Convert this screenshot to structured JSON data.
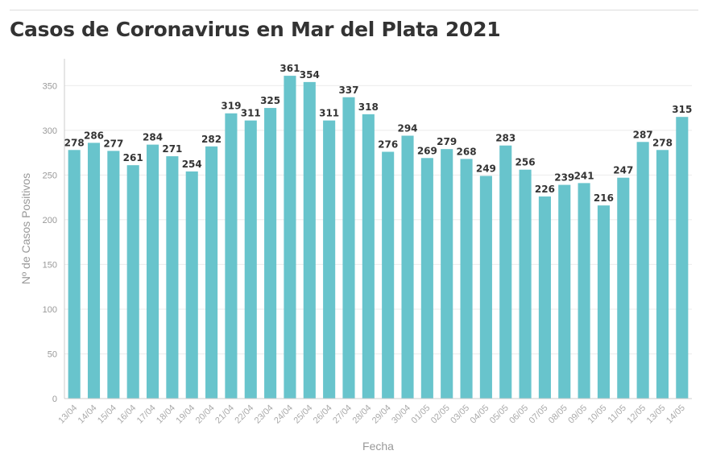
{
  "title": "Casos de Coronavirus en Mar del Plata 2021",
  "colors": {
    "bar": "#68c4cc",
    "grid": "#ebebeb",
    "axis": "#cccccc",
    "label": "#333333"
  },
  "chart_data": {
    "type": "bar",
    "title": "Casos de Coronavirus en Mar del Plata 2021",
    "xlabel": "Fecha",
    "ylabel": "Nº de Casos Positivos",
    "ylim": [
      0,
      380
    ],
    "yticks": [
      0,
      50,
      100,
      150,
      200,
      250,
      300,
      350
    ],
    "grid": true,
    "categories": [
      "13/04",
      "14/04",
      "15/04",
      "16/04",
      "17/04",
      "18/04",
      "19/04",
      "20/04",
      "21/04",
      "22/04",
      "23/04",
      "24/04",
      "25/04",
      "26/04",
      "27/04",
      "28/04",
      "29/04",
      "30/04",
      "01/05",
      "02/05",
      "03/05",
      "04/05",
      "05/05",
      "06/05",
      "07/05",
      "08/05",
      "09/05",
      "10/05",
      "11/05",
      "12/05",
      "13/05",
      "14/05"
    ],
    "values": [
      278,
      286,
      277,
      261,
      284,
      271,
      254,
      282,
      319,
      311,
      325,
      361,
      354,
      311,
      337,
      318,
      276,
      294,
      269,
      279,
      268,
      249,
      283,
      256,
      226,
      239,
      241,
      216,
      247,
      287,
      278,
      315
    ]
  }
}
